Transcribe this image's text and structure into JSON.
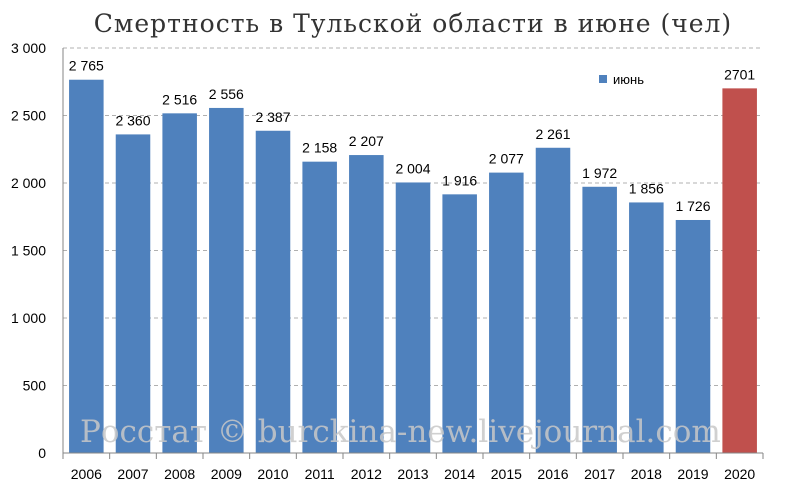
{
  "chart_data": {
    "type": "bar",
    "title": "Смертность в Тульской области в июне (чел)",
    "categories": [
      "2006",
      "2007",
      "2008",
      "2009",
      "2010",
      "2011",
      "2012",
      "2013",
      "2014",
      "2015",
      "2016",
      "2017",
      "2018",
      "2019",
      "2020"
    ],
    "series": [
      {
        "name": "июнь",
        "values": [
          2765,
          2360,
          2516,
          2556,
          2387,
          2158,
          2207,
          2004,
          1916,
          2077,
          2261,
          1972,
          1856,
          1726,
          2701
        ],
        "labels": [
          "2 765",
          "2 360",
          "2 516",
          "2 556",
          "2 387",
          "2 158",
          "2 207",
          "2 004",
          "1 916",
          "2 077",
          "2 261",
          "1 972",
          "1 856",
          "1 726",
          "2701"
        ]
      }
    ],
    "yticks": [
      0,
      500,
      1000,
      1500,
      2000,
      2500,
      3000
    ],
    "ytick_labels": [
      "0",
      "500",
      "1 000",
      "1 500",
      "2 000",
      "2 500",
      "3 000"
    ],
    "ylim": [
      0,
      3000
    ],
    "grid": true,
    "legend_position": "top-right",
    "colors": {
      "default": "#4f81bd",
      "highlight": "#c0504d"
    },
    "highlight_category": "2020"
  },
  "watermark": "Росстат © burckina-new.livejournal.com"
}
